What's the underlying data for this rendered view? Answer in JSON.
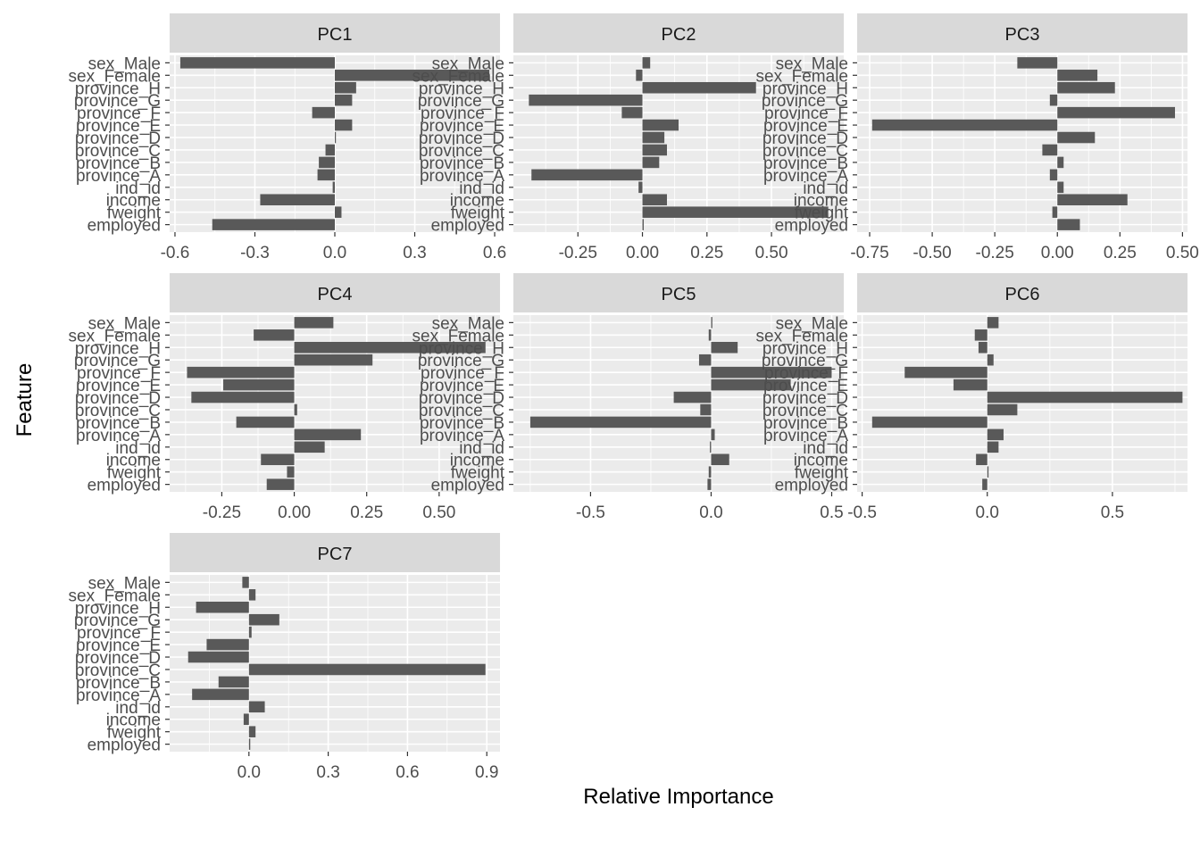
{
  "chart_data": {
    "type": "bar",
    "orientation": "horizontal",
    "xlabel": "Relative Importance",
    "ylabel": "Feature",
    "categories": [
      "sex_Male",
      "sex_Female",
      "province_H",
      "province_G",
      "province_F",
      "province_E",
      "province_D",
      "province_C",
      "province_B",
      "province_A",
      "ind_id",
      "income",
      "fweight",
      "employed"
    ],
    "grid": true,
    "colors": {
      "panel": "#ebebeb",
      "strip": "#d9d9d9",
      "bar": "#595959",
      "grid": "#ffffff"
    },
    "facets": [
      {
        "name": "PC1",
        "xlim": [
          -0.62,
          0.62
        ],
        "ticks": [
          -0.6,
          -0.3,
          0.0,
          0.3,
          0.6
        ],
        "tick_labels": [
          "-0.6",
          "-0.3",
          "0.0",
          "0.3",
          "0.6"
        ],
        "values": [
          -0.58,
          0.58,
          0.08,
          0.065,
          -0.085,
          0.065,
          0.0,
          -0.035,
          -0.06,
          -0.065,
          -0.008,
          -0.28,
          0.025,
          -0.46
        ]
      },
      {
        "name": "PC2",
        "xlim": [
          -0.5,
          0.78
        ],
        "ticks": [
          -0.25,
          0.0,
          0.25,
          0.5
        ],
        "tick_labels": [
          "-0.25",
          "0.00",
          "0.25",
          "0.50"
        ],
        "values": [
          0.03,
          -0.025,
          0.44,
          -0.44,
          -0.08,
          0.14,
          0.085,
          0.095,
          0.065,
          -0.43,
          -0.015,
          0.095,
          0.72,
          0.005
        ]
      },
      {
        "name": "PC3",
        "xlim": [
          -0.8,
          0.52
        ],
        "ticks": [
          -0.75,
          -0.5,
          -0.25,
          0.0,
          0.25,
          0.5
        ],
        "tick_labels": [
          "-0.75",
          "-0.50",
          "-0.25",
          "0.00",
          "0.25",
          "0.50"
        ],
        "values": [
          -0.16,
          0.16,
          0.23,
          -0.03,
          0.47,
          -0.74,
          0.15,
          -0.06,
          0.025,
          -0.03,
          0.025,
          0.28,
          -0.02,
          0.09
        ]
      },
      {
        "name": "PC4",
        "xlim": [
          -0.43,
          0.71
        ],
        "ticks": [
          -0.25,
          0.0,
          0.25,
          0.5
        ],
        "tick_labels": [
          "-0.25",
          "0.00",
          "0.25",
          "0.50"
        ],
        "values": [
          0.135,
          -0.14,
          0.66,
          0.27,
          -0.37,
          -0.245,
          -0.355,
          0.01,
          -0.2,
          0.23,
          0.105,
          -0.115,
          -0.025,
          -0.095
        ]
      },
      {
        "name": "PC5",
        "xlim": [
          -0.82,
          0.55
        ],
        "ticks": [
          -0.5,
          0.0,
          0.5
        ],
        "tick_labels": [
          "-0.5",
          "0.0",
          "0.5"
        ],
        "values": [
          0.005,
          -0.01,
          0.11,
          -0.05,
          0.5,
          0.33,
          -0.155,
          -0.045,
          -0.75,
          0.015,
          -0.005,
          0.075,
          -0.01,
          -0.015
        ]
      },
      {
        "name": "PC6",
        "xlim": [
          -0.52,
          0.8
        ],
        "ticks": [
          -0.5,
          0.0,
          0.5
        ],
        "tick_labels": [
          "-0.5",
          "0.0",
          "0.5"
        ],
        "values": [
          0.045,
          -0.05,
          -0.035,
          0.025,
          -0.33,
          -0.135,
          0.78,
          0.12,
          -0.46,
          0.065,
          0.045,
          -0.045,
          0.005,
          -0.02
        ]
      },
      {
        "name": "PC7",
        "xlim": [
          -0.3,
          0.95
        ],
        "ticks": [
          0.0,
          0.3,
          0.6,
          0.9
        ],
        "tick_labels": [
          "0.0",
          "0.3",
          "0.6",
          "0.9"
        ],
        "values": [
          -0.025,
          0.025,
          -0.2,
          0.115,
          0.01,
          -0.16,
          -0.23,
          0.895,
          -0.115,
          -0.215,
          0.06,
          -0.02,
          0.025,
          0.005
        ]
      }
    ]
  }
}
